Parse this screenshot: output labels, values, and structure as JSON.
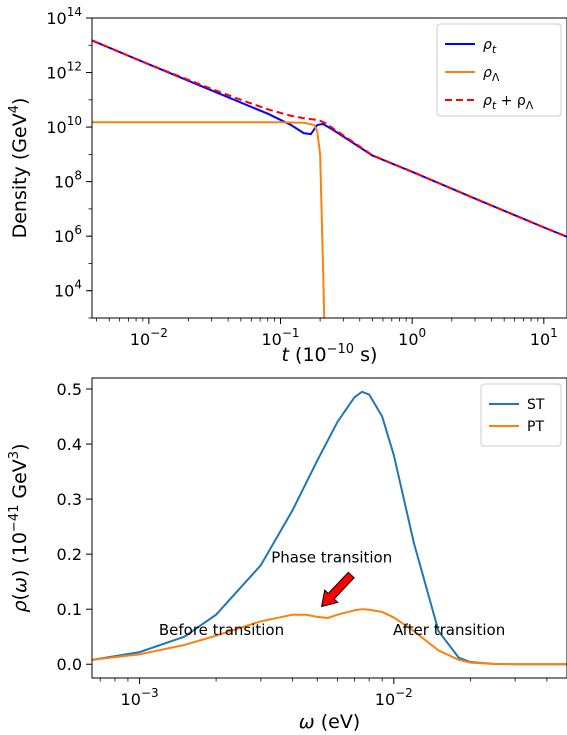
{
  "chart_data": [
    {
      "type": "line",
      "xlabel": "t (10⁻¹⁰ s)",
      "ylabel": "Density (GeV⁴)",
      "xscale": "log",
      "yscale": "log",
      "xlim": [
        0.0037,
        15
      ],
      "ylim": [
        1000,
        100000000000000
      ],
      "xticks": [
        {
          "value": 0.01,
          "base": "10",
          "exp": "−2"
        },
        {
          "value": 0.1,
          "base": "10",
          "exp": "−1"
        },
        {
          "value": 1,
          "base": "10",
          "exp": "0"
        },
        {
          "value": 10,
          "base": "10",
          "exp": "1"
        }
      ],
      "yticks": [
        {
          "value": 10000,
          "base": "10",
          "exp": "4"
        },
        {
          "value": 1000000,
          "base": "10",
          "exp": "6"
        },
        {
          "value": 100000000,
          "base": "10",
          "exp": "8"
        },
        {
          "value": 10000000000,
          "base": "10",
          "exp": "10"
        },
        {
          "value": 1000000000000,
          "base": "10",
          "exp": "12"
        },
        {
          "value": 100000000000000,
          "base": "10",
          "exp": "14"
        }
      ],
      "legend_position": "top-right",
      "series": [
        {
          "name": "ρ_t",
          "label_main": "ρ",
          "label_sub": "t",
          "color": "#0000ff",
          "style": "solid",
          "x": [
            0.0037,
            0.01,
            0.03,
            0.08,
            0.12,
            0.15,
            0.17,
            0.19,
            0.21,
            0.25,
            0.3,
            0.5,
            1,
            3,
            10,
            15
          ],
          "y": [
            15000000000000.0,
            2000000000000.0,
            220000000000.0,
            31000000000.0,
            12000000000.0,
            6000000000.0,
            5500000000.0,
            12000000000.0,
            13000000000.0,
            8000000000.0,
            4500000000.0,
            900000000.0,
            230000000.0,
            24000000.0,
            2100000.0,
            950000.0
          ]
        },
        {
          "name": "ρ_Λ",
          "label_main": "ρ",
          "label_sub": "Λ",
          "color": "#ff7f0e",
          "style": "solid",
          "x": [
            0.0037,
            0.05,
            0.1,
            0.15,
            0.18,
            0.19,
            0.2,
            0.205,
            0.21,
            0.215
          ],
          "y": [
            15000000000.0,
            15000000000.0,
            15000000000.0,
            14500000000.0,
            12000000000.0,
            7000000000.0,
            1000000000.0,
            10000000.0,
            100000.0,
            1000.0
          ]
        },
        {
          "name": "ρ_t + ρ_Λ",
          "label_main": "ρ",
          "label_sub": "t",
          "label_plus": " + ρ",
          "label_sub2": "Λ",
          "color": "#ff0000",
          "style": "dashed",
          "x": [
            0.0037,
            0.01,
            0.03,
            0.05,
            0.08,
            0.12,
            0.15,
            0.18,
            0.2,
            0.22,
            0.25,
            0.3,
            0.5,
            1,
            3,
            10,
            15
          ],
          "y": [
            15000000000000.0,
            2000000000000.0,
            250000000000.0,
            100000000000.0,
            45000000000.0,
            26000000000.0,
            21000000000.0,
            19000000000.0,
            17000000000.0,
            14000000000.0,
            9000000000.0,
            5000000000.0,
            920000000.0,
            230000000.0,
            24000000.0,
            2100000.0,
            950000.0
          ]
        }
      ]
    },
    {
      "type": "line",
      "xlabel": "ω (eV)",
      "ylabel": "ρ(ω) (10⁻⁴¹ GeV³)",
      "xscale": "log",
      "yscale": "linear",
      "xlim": [
        0.00065,
        0.048
      ],
      "ylim": [
        -0.025,
        0.52
      ],
      "xticks": [
        {
          "value": 0.001,
          "base": "10",
          "exp": "−3"
        },
        {
          "value": 0.01,
          "base": "10",
          "exp": "−2"
        }
      ],
      "yticks": [
        {
          "value": 0.0,
          "label": "0.0"
        },
        {
          "value": 0.1,
          "label": "0.1"
        },
        {
          "value": 0.2,
          "label": "0.2"
        },
        {
          "value": 0.3,
          "label": "0.3"
        },
        {
          "value": 0.4,
          "label": "0.4"
        },
        {
          "value": 0.5,
          "label": "0.5"
        }
      ],
      "legend_position": "top-right",
      "series": [
        {
          "name": "ST",
          "color": "#1f77b4",
          "style": "solid",
          "x": [
            0.00065,
            0.001,
            0.0015,
            0.002,
            0.003,
            0.004,
            0.005,
            0.006,
            0.007,
            0.0075,
            0.008,
            0.009,
            0.01,
            0.012,
            0.015,
            0.018,
            0.02,
            0.025,
            0.03,
            0.048
          ],
          "y": [
            0.008,
            0.022,
            0.05,
            0.09,
            0.18,
            0.28,
            0.37,
            0.44,
            0.485,
            0.495,
            0.49,
            0.45,
            0.38,
            0.22,
            0.06,
            0.012,
            0.004,
            0.0005,
            0.0,
            0.0
          ]
        },
        {
          "name": "PT",
          "color": "#ff7f0e",
          "style": "solid",
          "x": [
            0.00065,
            0.001,
            0.0015,
            0.002,
            0.003,
            0.004,
            0.0045,
            0.005,
            0.0055,
            0.006,
            0.007,
            0.0075,
            0.008,
            0.009,
            0.01,
            0.012,
            0.015,
            0.018,
            0.02,
            0.025,
            0.03,
            0.048
          ],
          "y": [
            0.008,
            0.018,
            0.035,
            0.052,
            0.078,
            0.09,
            0.09,
            0.086,
            0.084,
            0.09,
            0.098,
            0.1,
            0.099,
            0.095,
            0.085,
            0.06,
            0.025,
            0.008,
            0.003,
            0.0005,
            0.0,
            0.0
          ]
        }
      ],
      "annotations": [
        {
          "text": "Phase transition",
          "x": 0.0057,
          "y": 0.185
        },
        {
          "text": "Before transition",
          "x": 0.0021,
          "y": 0.053
        },
        {
          "text": "After transition",
          "x": 0.0165,
          "y": 0.053
        }
      ],
      "arrow": {
        "from_x": 0.0068,
        "from_y": 0.162,
        "to_x": 0.0052,
        "to_y": 0.105,
        "color": "#ff0000"
      }
    }
  ]
}
